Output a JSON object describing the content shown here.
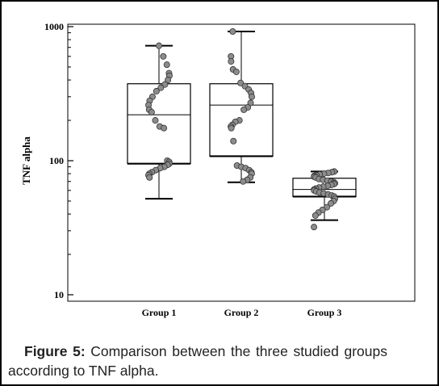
{
  "chart_data": {
    "type": "box",
    "ylabel": "TNF alpha",
    "yscale": "log",
    "ylim": [
      10,
      1000
    ],
    "yticks": [
      {
        "value": 10,
        "label": "10"
      },
      {
        "value": 100,
        "label": "100"
      },
      {
        "value": 1000,
        "label": "1000"
      }
    ],
    "categories": [
      "Group 1",
      "Group 2",
      "Group 3"
    ],
    "boxes": [
      {
        "name": "Group 1",
        "q1": 95,
        "median": 220,
        "q3": 375,
        "whisker_low": 52,
        "whisker_high": 720,
        "points": [
          720,
          600,
          520,
          450,
          430,
          400,
          370,
          350,
          330,
          300,
          280,
          260,
          240,
          230,
          200,
          180,
          175,
          100,
          98,
          95,
          93,
          90,
          88,
          85,
          82,
          80,
          78,
          75
        ]
      },
      {
        "name": "Group 2",
        "q1": 108,
        "median": 260,
        "q3": 375,
        "whisker_low": 69,
        "whisker_high": 920,
        "points": [
          920,
          600,
          550,
          480,
          460,
          380,
          360,
          340,
          320,
          300,
          270,
          250,
          240,
          200,
          195,
          185,
          180,
          175,
          140,
          92,
          90,
          88,
          85,
          82,
          80,
          75,
          72,
          70
        ]
      },
      {
        "name": "Group 3",
        "q1": 54,
        "median": 61,
        "q3": 74,
        "whisker_low": 36,
        "whisker_high": 83,
        "points": [
          83,
          82,
          81,
          80,
          79,
          78,
          77,
          76,
          75,
          73,
          72,
          71,
          70,
          69,
          68,
          67,
          66,
          65,
          64,
          63,
          62,
          61,
          60,
          59,
          58,
          57,
          56,
          55,
          54,
          52,
          50,
          48,
          45,
          43,
          41,
          39,
          32
        ]
      }
    ]
  },
  "caption": {
    "figure_label": "Figure 5:",
    "text": " Comparison between the three studied groups according to TNF alpha."
  },
  "colors": {
    "point_fill": "#8c8c8c",
    "point_stroke": "#333333",
    "line": "#000000"
  }
}
